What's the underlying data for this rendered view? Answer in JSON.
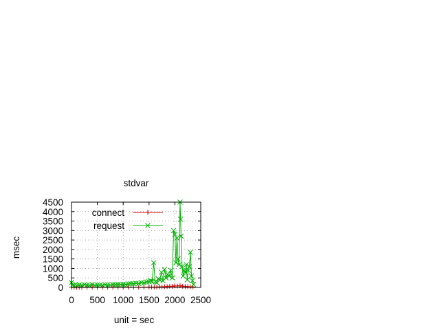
{
  "chart_data": {
    "type": "line",
    "title": "stdvar",
    "xlabel": "unit = sec",
    "ylabel": "msec",
    "xlim": [
      0,
      2500
    ],
    "ylim": [
      0,
      4500
    ],
    "xticks": [
      "0",
      "500",
      "1000",
      "1500",
      "2000",
      "2500"
    ],
    "yticks": [
      "0",
      "500",
      "1000",
      "1500",
      "2000",
      "2500",
      "3000",
      "3500",
      "4000",
      "4500"
    ],
    "grid": true,
    "legend_position": "top-left",
    "colors": {
      "connect": "#d40000",
      "request": "#00b000"
    },
    "series": [
      {
        "name": "connect",
        "marker": "plus",
        "x": [
          0,
          50,
          100,
          150,
          200,
          300,
          400,
          500,
          600,
          700,
          800,
          900,
          1000,
          1100,
          1200,
          1300,
          1400,
          1500,
          1550,
          1600,
          1650,
          1700,
          1750,
          1800,
          1850,
          1900,
          1950,
          2000,
          2050,
          2100,
          2150,
          2200,
          2250,
          2300,
          2350
        ],
        "y": [
          5,
          6,
          4,
          5,
          6,
          5,
          4,
          6,
          5,
          4,
          6,
          5,
          5,
          6,
          4,
          5,
          8,
          10,
          15,
          12,
          18,
          25,
          30,
          40,
          45,
          60,
          55,
          80,
          70,
          90,
          60,
          50,
          40,
          30,
          20
        ]
      },
      {
        "name": "request",
        "marker": "x",
        "x": [
          0,
          25,
          50,
          75,
          100,
          150,
          200,
          250,
          300,
          350,
          400,
          450,
          500,
          550,
          600,
          650,
          700,
          750,
          800,
          850,
          900,
          950,
          1000,
          1050,
          1100,
          1150,
          1200,
          1250,
          1300,
          1350,
          1400,
          1450,
          1500,
          1530,
          1560,
          1590,
          1620,
          1650,
          1680,
          1710,
          1740,
          1770,
          1800,
          1830,
          1860,
          1890,
          1920,
          1950,
          1975,
          2000,
          2020,
          2040,
          2060,
          2080,
          2100,
          2110,
          2120,
          2140,
          2160,
          2180,
          2200,
          2220,
          2240,
          2260,
          2280,
          2300,
          2320,
          2340,
          2360
        ],
        "y": [
          250,
          120,
          90,
          150,
          100,
          130,
          110,
          140,
          120,
          100,
          150,
          110,
          130,
          120,
          110,
          140,
          130,
          120,
          150,
          140,
          160,
          150,
          170,
          150,
          180,
          200,
          190,
          220,
          210,
          250,
          240,
          280,
          300,
          350,
          320,
          1300,
          300,
          250,
          450,
          400,
          800,
          350,
          950,
          500,
          700,
          600,
          900,
          500,
          3000,
          2800,
          1300,
          2600,
          1500,
          1200,
          4500,
          3600,
          2700,
          1100,
          600,
          900,
          800,
          1200,
          400,
          900,
          1100,
          1850,
          600,
          350,
          150
        ]
      }
    ]
  }
}
